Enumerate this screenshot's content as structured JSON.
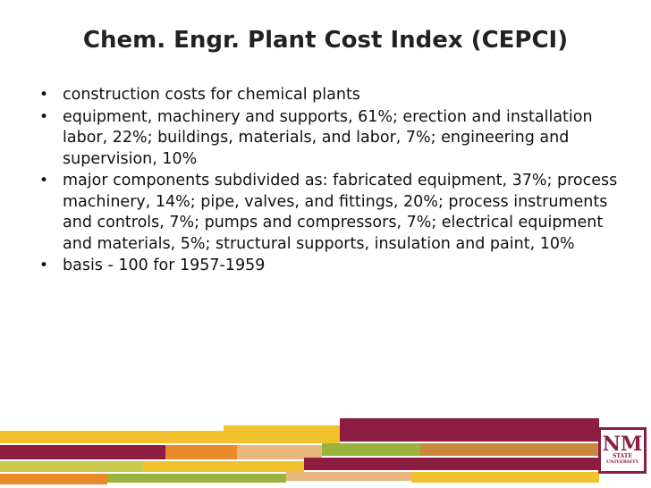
{
  "slide": {
    "title": "Chem. Engr. Plant Cost Index (CEPCI)",
    "bullets": [
      "construction costs for chemical plants",
      "equipment, machinery and supports, 61%; erection and installation labor, 22%; buildings, materials, and labor, 7%; engineering and supervision, 10%",
      "major components subdivided as: fabricated equipment, 37%; process machinery, 14%; pipe, valves, and fittings, 20%; process instruments and controls, 7%; pumps and compressors, 7%; electrical equipment and materials, 5%; structural supports, insulation and paint, 10%",
      "basis - 100 for 1957-1959"
    ]
  },
  "logo": {
    "main": "NM",
    "line1": "STATE",
    "line2": "UNIVERSITY"
  },
  "colors": {
    "crimson": "#8c1d40",
    "gold": "#f2c12e",
    "orange": "#e98a2b",
    "tan": "#e8b77c",
    "green": "#9bb23b",
    "lime": "#c8c84a",
    "brown": "#c9893c"
  }
}
